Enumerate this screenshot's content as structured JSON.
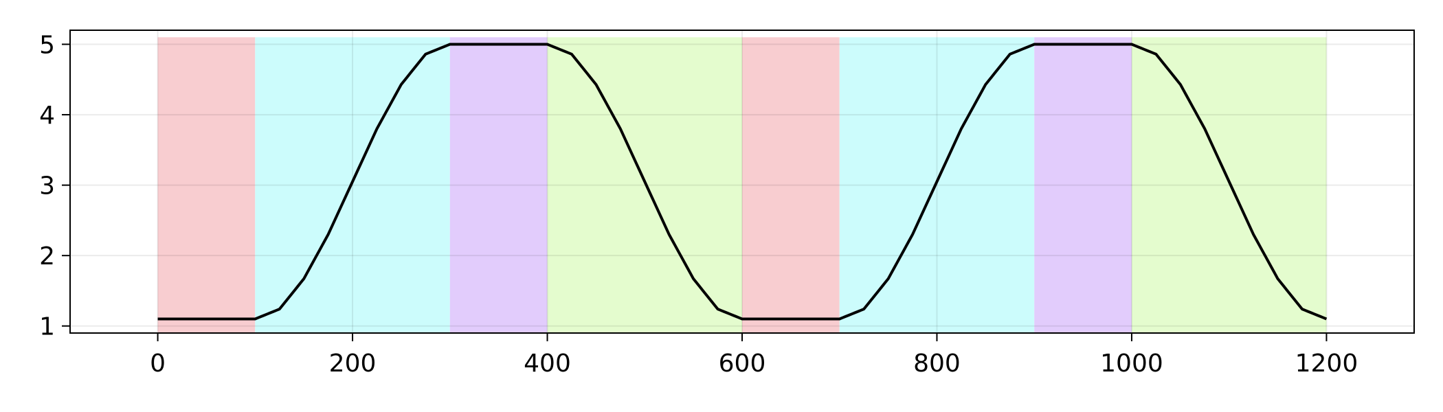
{
  "chart_data": {
    "type": "line",
    "title": "",
    "xlabel": "",
    "ylabel": "",
    "xlim": [
      -90,
      1290
    ],
    "ylim": [
      0.9,
      5.2
    ],
    "x_ticks": [
      0,
      200,
      400,
      600,
      800,
      1000,
      1200
    ],
    "x_tick_labels": [
      "0",
      "200",
      "400",
      "600",
      "800",
      "1000",
      "1200"
    ],
    "y_ticks": [
      1,
      2,
      3,
      4,
      5
    ],
    "y_tick_labels": [
      "1",
      "2",
      "3",
      "4",
      "5"
    ],
    "grid": true,
    "legend": "none",
    "shaded_bands_y_range": [
      0.9,
      5.1
    ],
    "shaded_bands": [
      {
        "start": 0,
        "end": 100,
        "color": "#f8cdd0"
      },
      {
        "start": 100,
        "end": 300,
        "color": "#ccfcfc"
      },
      {
        "start": 300,
        "end": 400,
        "color": "#e2ccfc"
      },
      {
        "start": 400,
        "end": 600,
        "color": "#e4fcce"
      },
      {
        "start": 600,
        "end": 700,
        "color": "#f8cdd0"
      },
      {
        "start": 700,
        "end": 900,
        "color": "#ccfcfc"
      },
      {
        "start": 900,
        "end": 1000,
        "color": "#e2ccfc"
      },
      {
        "start": 1000,
        "end": 1200,
        "color": "#e4fcce"
      }
    ],
    "series": [
      {
        "color": "#000000",
        "x": [
          0,
          100,
          125,
          150,
          175,
          200,
          225,
          250,
          275,
          300,
          400,
          425,
          450,
          475,
          500,
          525,
          550,
          575,
          600,
          700,
          725,
          750,
          775,
          800,
          825,
          850,
          875,
          900,
          1000,
          1025,
          1050,
          1075,
          1100,
          1125,
          1150,
          1175,
          1200
        ],
        "y": [
          1.1,
          1.1,
          1.24,
          1.67,
          2.3,
          3.05,
          3.8,
          4.43,
          4.86,
          5.0,
          5.0,
          4.86,
          4.43,
          3.8,
          3.05,
          2.3,
          1.67,
          1.24,
          1.1,
          1.1,
          1.24,
          1.67,
          2.3,
          3.05,
          3.8,
          4.43,
          4.86,
          5.0,
          5.0,
          4.86,
          4.43,
          3.8,
          3.05,
          2.3,
          1.67,
          1.24,
          1.1
        ]
      }
    ]
  }
}
